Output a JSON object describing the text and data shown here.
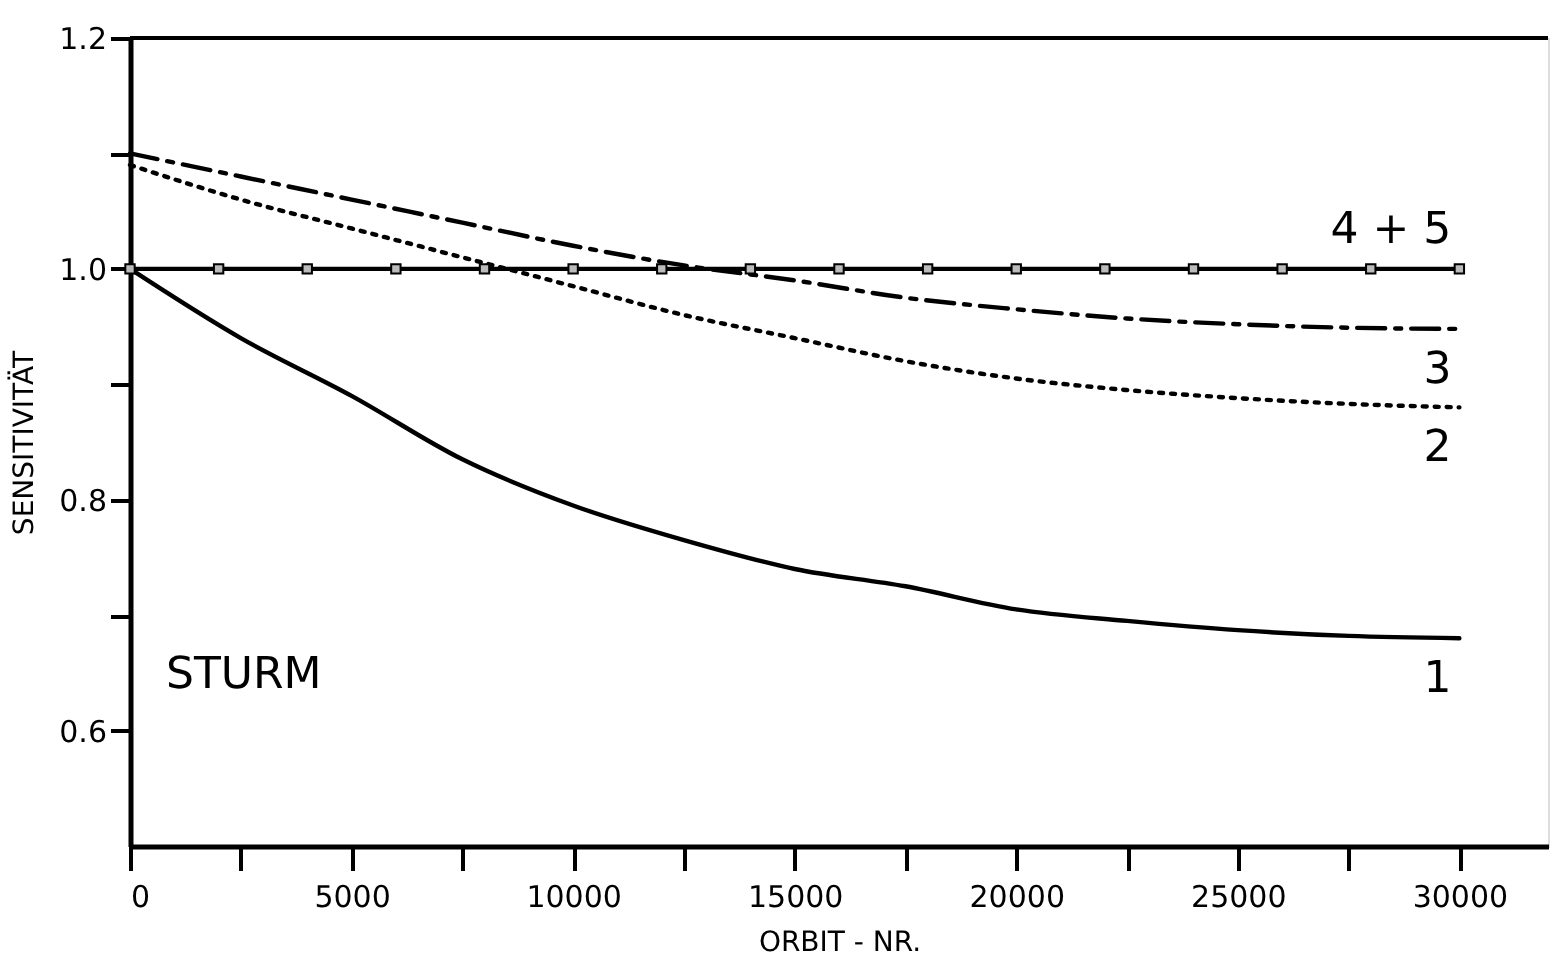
{
  "chart_data": {
    "type": "line",
    "xlabel": "ORBIT - NR.",
    "ylabel": "SENSITIVITÄT",
    "annotations": [
      "STURM"
    ],
    "xlim": [
      0,
      32000
    ],
    "xticks": [
      0,
      {
        "value": 2500,
        "label": null
      },
      5000,
      {
        "value": 7500,
        "label": null
      },
      10000,
      {
        "value": 12500,
        "label": null
      },
      15000,
      {
        "value": 17500,
        "label": null
      },
      20000,
      {
        "value": 22500,
        "label": null
      },
      25000,
      {
        "value": 27500,
        "label": null
      },
      30000
    ],
    "ylim": [
      0.5,
      1.2
    ],
    "yticks": [
      0.6,
      {
        "value": 0.7,
        "label": null
      },
      0.8,
      {
        "value": 0.9,
        "label": null
      },
      {
        "value": 1.0,
        "label": "1.0"
      },
      {
        "value": 1.1,
        "label": null
      },
      1.2
    ],
    "grid": false,
    "series": [
      {
        "name": "1",
        "color": "#000000",
        "line_style": "solid",
        "marker": "none",
        "x": [
          0,
          2500,
          5000,
          7500,
          10000,
          12500,
          15000,
          17500,
          20000,
          22500,
          25000,
          27500,
          30000
        ],
        "values": [
          1.0,
          0.94,
          0.89,
          0.835,
          0.795,
          0.765,
          0.74,
          0.725,
          0.705,
          0.695,
          0.687,
          0.682,
          0.68
        ]
      },
      {
        "name": "2",
        "color": "#000000",
        "line_style": "dotted",
        "marker": "none",
        "x": [
          0,
          2500,
          5000,
          7500,
          10000,
          12500,
          15000,
          17500,
          20000,
          22500,
          25000,
          27500,
          30000
        ],
        "values": [
          1.09,
          1.06,
          1.035,
          1.01,
          0.985,
          0.96,
          0.94,
          0.92,
          0.905,
          0.895,
          0.888,
          0.883,
          0.88
        ]
      },
      {
        "name": "3",
        "color": "#000000",
        "line_style": "dashed",
        "marker": "none",
        "x": [
          0,
          2500,
          5000,
          7500,
          10000,
          12500,
          15000,
          17500,
          20000,
          22500,
          25000,
          27500,
          30000
        ],
        "values": [
          1.1,
          1.08,
          1.06,
          1.04,
          1.02,
          1.003,
          0.99,
          0.975,
          0.965,
          0.957,
          0.952,
          0.949,
          0.948
        ]
      },
      {
        "name": "4 + 5",
        "color": "#000000",
        "line_style": "solid",
        "marker": "square",
        "x": [
          0,
          2000,
          4000,
          6000,
          8000,
          10000,
          12000,
          14000,
          16000,
          18000,
          20000,
          22000,
          24000,
          26000,
          28000,
          30000
        ],
        "values": [
          1.0,
          1.0,
          1.0,
          1.0,
          1.0,
          1.0,
          1.0,
          1.0,
          1.0,
          1.0,
          1.0,
          1.0,
          1.0,
          1.0,
          1.0,
          1.0
        ]
      }
    ]
  }
}
